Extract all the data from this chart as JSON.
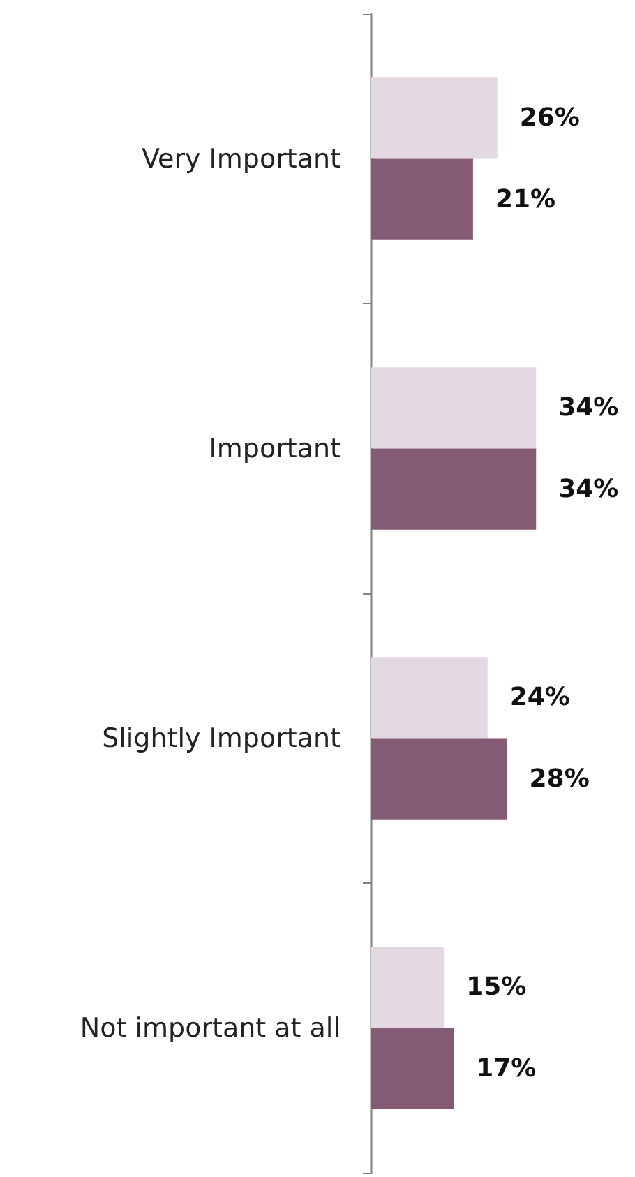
{
  "chart_data": {
    "type": "bar",
    "orientation": "horizontal",
    "categories": [
      "Very Important",
      "Important",
      "Slightly Important",
      "Not important at all"
    ],
    "series": [
      {
        "color": "#e4d9e2",
        "values": [
          26,
          34,
          24,
          15
        ],
        "value_labels": [
          "26%",
          "34%",
          "24%",
          "15%"
        ]
      },
      {
        "color": "#845a75",
        "values": [
          21,
          34,
          28,
          17
        ],
        "value_labels": [
          "21%",
          "34%",
          "28%",
          "17%"
        ]
      }
    ]
  }
}
